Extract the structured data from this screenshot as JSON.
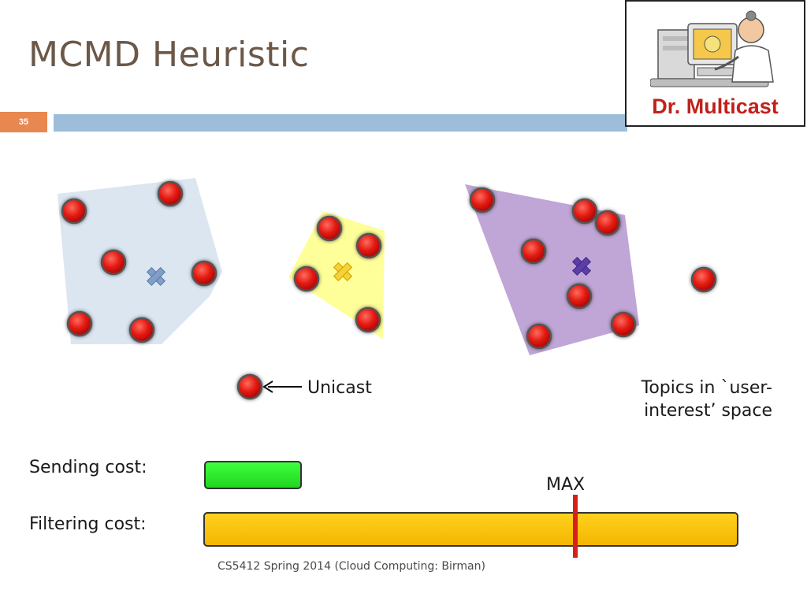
{
  "slide": {
    "title": "MCMD Heuristic",
    "number": "35",
    "footer": "CS5412 Spring 2014 (Cloud Computing: Birman)"
  },
  "logo": {
    "text": "Dr. Multicast",
    "icon": "doctor-computer-cartoon"
  },
  "legend": {
    "unicast_label": "Unicast"
  },
  "topics_label": {
    "line1": "Topics in `user-",
    "line2": "interest’ space"
  },
  "costs": {
    "sending_label": "Sending cost:",
    "filtering_label": "Filtering cost:",
    "max_label": "MAX",
    "sending_level": 0.18,
    "filtering_level": 1.0,
    "max_level": 0.69
  },
  "colors": {
    "node": "#e0140d",
    "group_blue": "#dce6f1",
    "group_yellow": "#ffff99",
    "group_purple": "#bfa6d6",
    "center_blue": "#7f9fc9",
    "center_yellow": "#f2c21b",
    "center_purple": "#5b3ea6",
    "sending_bar": "#22e022",
    "filtering_bar": "#f8c000",
    "max_marker": "#d6201e"
  }
}
